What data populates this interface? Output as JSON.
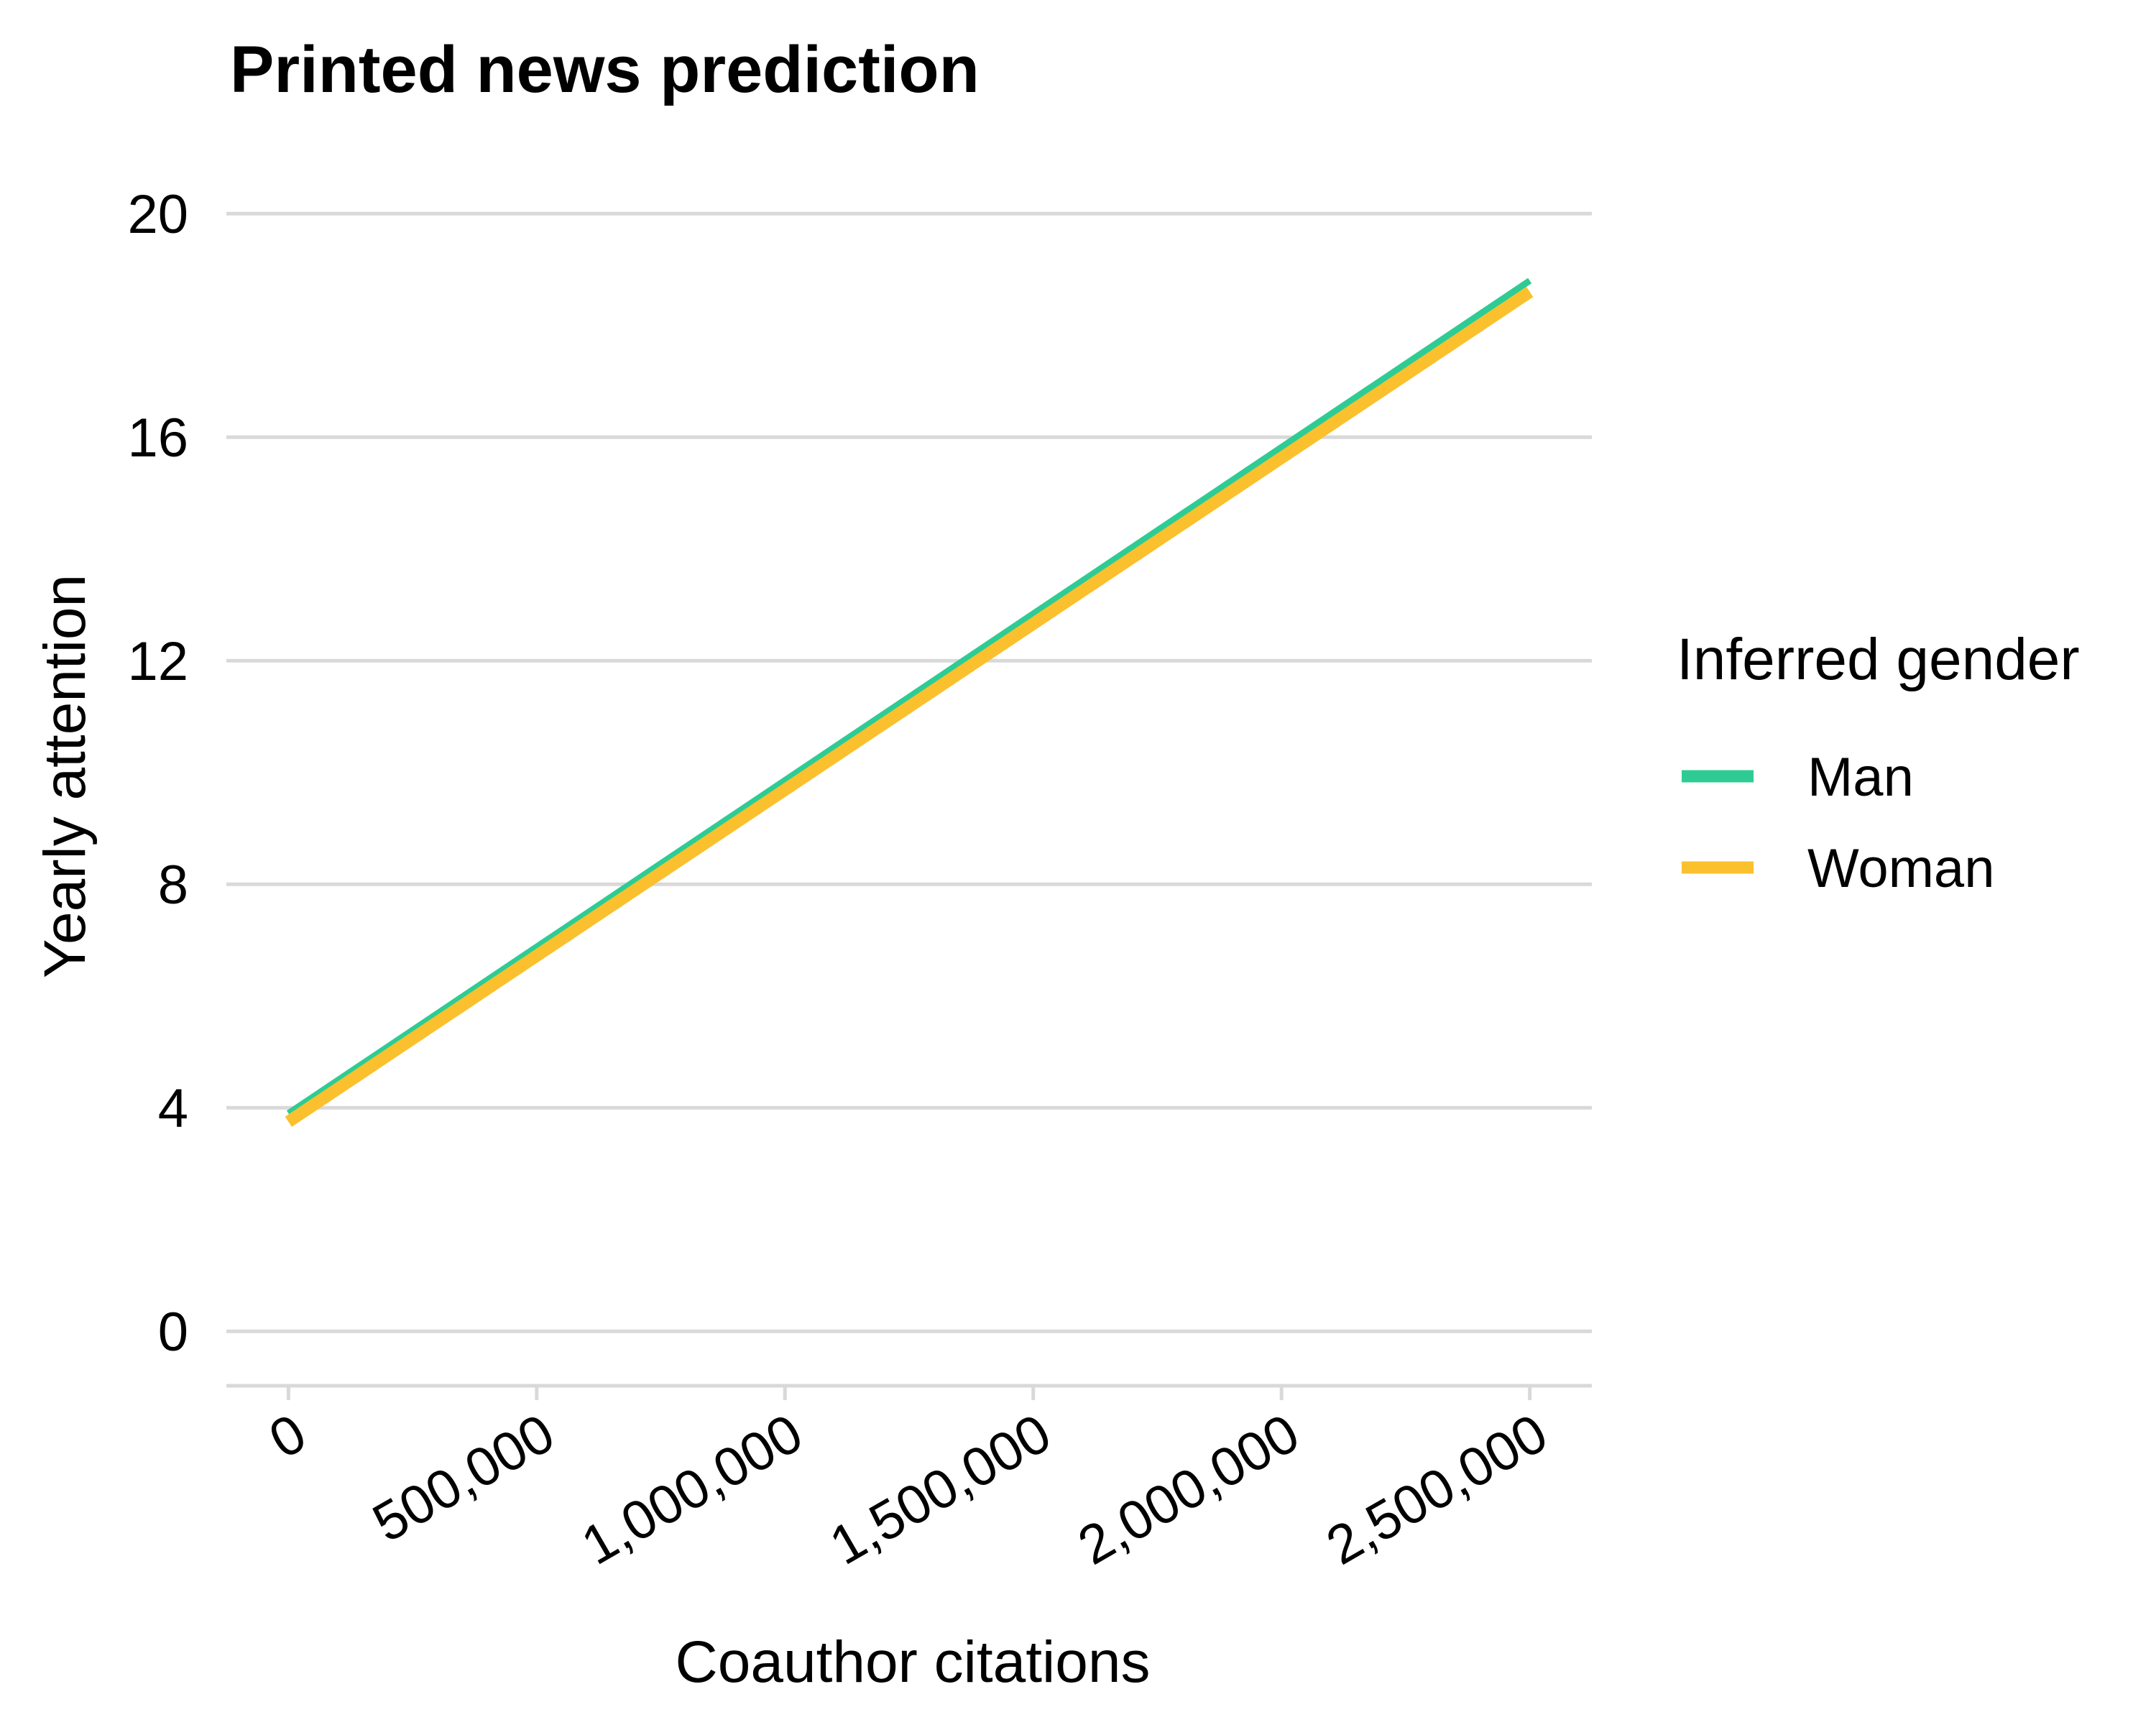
{
  "chart_data": {
    "type": "line",
    "title": "Printed news prediction",
    "xlabel": "Coauthor citations",
    "ylabel": "Yearly attention",
    "xlim": [
      -125000,
      2625000
    ],
    "ylim": [
      -1,
      20.8
    ],
    "x_ticks": [
      0,
      500000,
      1000000,
      1500000,
      2000000,
      2500000
    ],
    "x_tick_labels": [
      "0",
      "500,000",
      "1,000,000",
      "1,500,000",
      "2,000,000",
      "2,500,000"
    ],
    "y_ticks": [
      0,
      4,
      8,
      12,
      16,
      20
    ],
    "y_tick_labels": [
      "0",
      "4",
      "8",
      "12",
      "16",
      "20"
    ],
    "grid": "horizontal",
    "legend": {
      "title": "Inferred gender",
      "position": "right"
    },
    "series": [
      {
        "name": "Man",
        "color": "#2ecc94",
        "x": [
          0,
          2500000
        ],
        "y": [
          3.9,
          18.8
        ]
      },
      {
        "name": "Woman",
        "color": "#fbc02d",
        "x": [
          0,
          2500000
        ],
        "y": [
          3.75,
          18.6
        ]
      }
    ]
  }
}
